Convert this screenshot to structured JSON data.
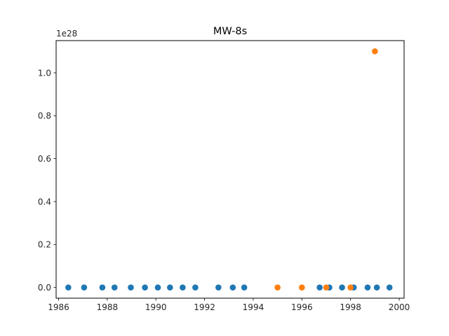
{
  "chart_data": {
    "type": "scatter",
    "title": "MW-8s",
    "xlabel": "",
    "ylabel": "",
    "y_offset_label": "1e28",
    "xlim": [
      1985.9,
      2000.2
    ],
    "ylim": [
      -0.05,
      1.15
    ],
    "x_ticks": [
      1986,
      1988,
      1990,
      1992,
      1994,
      1996,
      1998,
      2000
    ],
    "x_tick_labels": [
      "1986",
      "1988",
      "1990",
      "1992",
      "1994",
      "1996",
      "1998",
      "2000"
    ],
    "y_ticks": [
      0.0,
      0.2,
      0.4,
      0.6,
      0.8,
      1.0
    ],
    "y_tick_labels": [
      "0.0",
      "0.2",
      "0.4",
      "0.6",
      "0.8",
      "1.0"
    ],
    "grid": false,
    "series": [
      {
        "color": "#1f77b4",
        "points": [
          [
            1986.4,
            0
          ],
          [
            1987.05,
            0
          ],
          [
            1987.8,
            0
          ],
          [
            1988.3,
            0
          ],
          [
            1988.97,
            0
          ],
          [
            1989.55,
            0
          ],
          [
            1990.08,
            0
          ],
          [
            1990.58,
            0
          ],
          [
            1991.1,
            0
          ],
          [
            1991.62,
            0
          ],
          [
            1992.57,
            0
          ],
          [
            1993.16,
            0
          ],
          [
            1993.63,
            0
          ],
          [
            1996.73,
            0
          ],
          [
            1997.13,
            0
          ],
          [
            1997.65,
            0
          ],
          [
            1998.13,
            0
          ],
          [
            1998.7,
            0
          ],
          [
            1999.08,
            0
          ],
          [
            1999.6,
            0
          ]
        ]
      },
      {
        "color": "#ff7f0e",
        "points": [
          [
            1995.0,
            0
          ],
          [
            1996.0,
            0
          ],
          [
            1997.0,
            0
          ],
          [
            1998.0,
            0
          ],
          [
            1999.0,
            1.1
          ]
        ]
      }
    ]
  }
}
